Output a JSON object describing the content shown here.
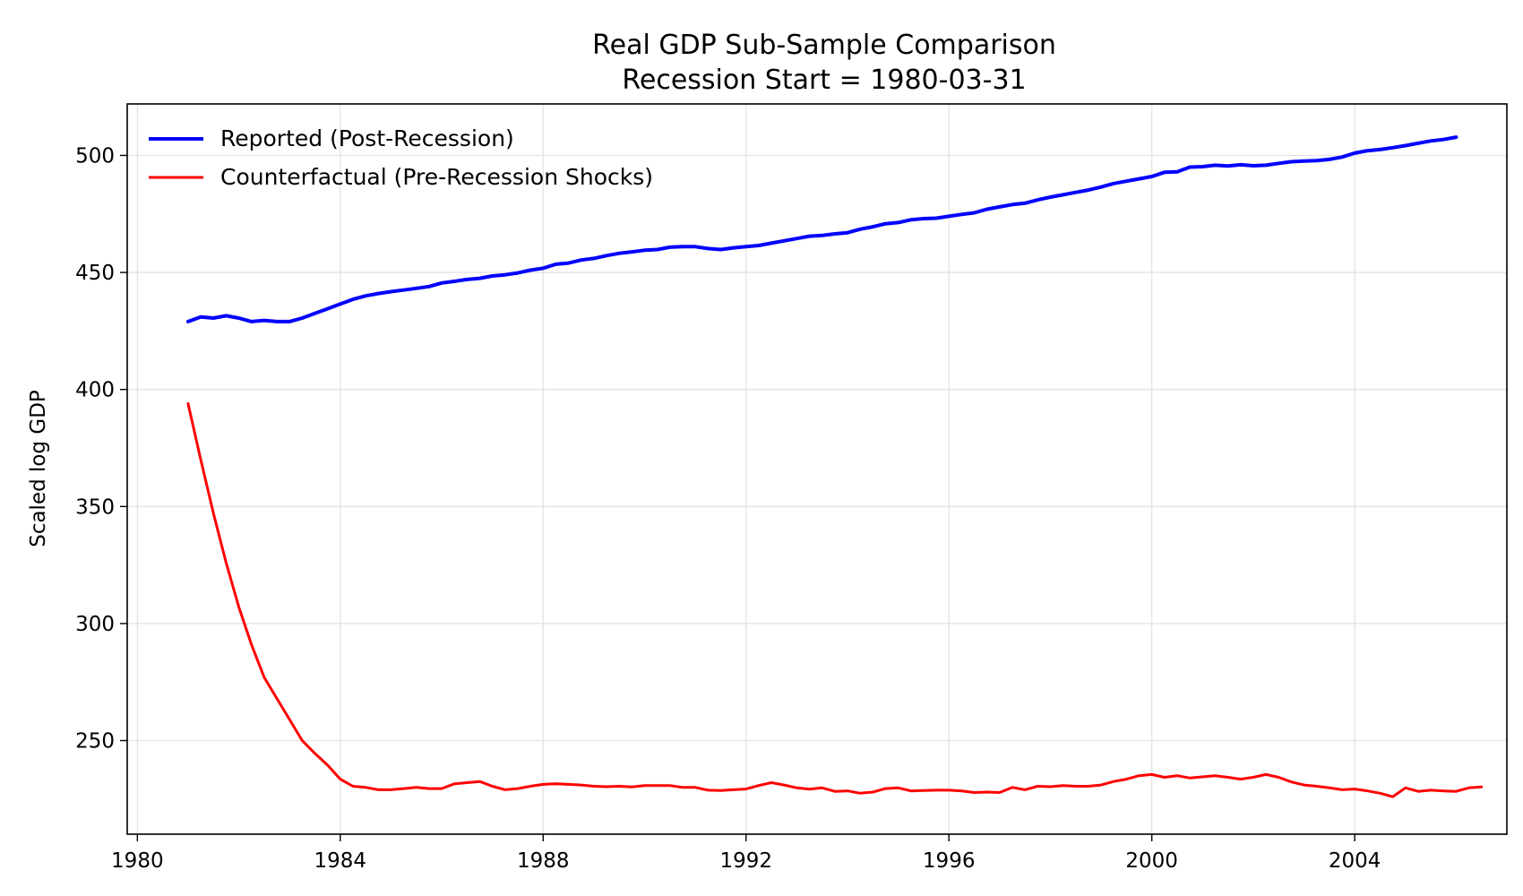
{
  "chart_data": {
    "type": "line",
    "title": "Real GDP Sub-Sample Comparison",
    "subtitle": "Recession Start = 1980-03-31",
    "xlabel": "",
    "ylabel": "Scaled log GDP",
    "xlim": [
      1979.8,
      2007.0
    ],
    "ylim": [
      210,
      522
    ],
    "xticks": [
      1980,
      1984,
      1988,
      1992,
      1996,
      2000,
      2004
    ],
    "yticks": [
      250,
      300,
      350,
      400,
      450,
      500
    ],
    "grid": true,
    "legend_position": "top-left",
    "series": [
      {
        "name": "Reported (Post-Recession)",
        "color": "#0000ff",
        "points": [
          [
            1981.0,
            429
          ],
          [
            1981.25,
            431
          ],
          [
            1981.5,
            430.5
          ],
          [
            1981.75,
            431.5
          ],
          [
            1982.0,
            430.5
          ],
          [
            1982.25,
            429
          ],
          [
            1982.5,
            429.5
          ],
          [
            1982.75,
            429
          ],
          [
            1983.0,
            429
          ],
          [
            1983.25,
            430.5
          ],
          [
            1983.5,
            432.5
          ],
          [
            1983.75,
            434.5
          ],
          [
            1984.0,
            436.5
          ],
          [
            1984.25,
            438.5
          ],
          [
            1984.5,
            440
          ],
          [
            1984.75,
            441
          ],
          [
            1985.0,
            441.8
          ],
          [
            1985.25,
            442.5
          ],
          [
            1985.5,
            443.2
          ],
          [
            1985.75,
            444
          ],
          [
            1986.0,
            445.5
          ],
          [
            1986.25,
            446.2
          ],
          [
            1986.5,
            447
          ],
          [
            1986.75,
            447.5
          ],
          [
            1987.0,
            448.5
          ],
          [
            1987.25,
            449
          ],
          [
            1987.5,
            449.8
          ],
          [
            1987.75,
            451
          ],
          [
            1988.0,
            451.8
          ],
          [
            1988.25,
            453.5
          ],
          [
            1988.5,
            454
          ],
          [
            1988.75,
            455.3
          ],
          [
            1989.0,
            456
          ],
          [
            1989.25,
            457.2
          ],
          [
            1989.5,
            458.2
          ],
          [
            1989.75,
            458.8
          ],
          [
            1990.0,
            459.5
          ],
          [
            1990.25,
            459.8
          ],
          [
            1990.5,
            460.8
          ],
          [
            1990.75,
            461
          ],
          [
            1991.0,
            461
          ],
          [
            1991.25,
            460.2
          ],
          [
            1991.5,
            459.8
          ],
          [
            1991.75,
            460.5
          ],
          [
            1992.0,
            461
          ],
          [
            1992.25,
            461.5
          ],
          [
            1992.5,
            462.5
          ],
          [
            1992.75,
            463.5
          ],
          [
            1993.0,
            464.5
          ],
          [
            1993.25,
            465.5
          ],
          [
            1993.5,
            465.8
          ],
          [
            1993.75,
            466.5
          ],
          [
            1994.0,
            467
          ],
          [
            1994.25,
            468.5
          ],
          [
            1994.5,
            469.5
          ],
          [
            1994.75,
            470.8
          ],
          [
            1995.0,
            471.3
          ],
          [
            1995.25,
            472.5
          ],
          [
            1995.5,
            473
          ],
          [
            1995.75,
            473.2
          ],
          [
            1996.0,
            474
          ],
          [
            1996.25,
            474.8
          ],
          [
            1996.5,
            475.5
          ],
          [
            1996.75,
            477
          ],
          [
            1997.0,
            478
          ],
          [
            1997.25,
            479
          ],
          [
            1997.5,
            479.6
          ],
          [
            1997.75,
            481
          ],
          [
            1998.0,
            482.2
          ],
          [
            1998.25,
            483.2
          ],
          [
            1998.5,
            484.2
          ],
          [
            1998.75,
            485.2
          ],
          [
            1999.0,
            486.5
          ],
          [
            1999.25,
            488
          ],
          [
            1999.5,
            489
          ],
          [
            1999.75,
            490
          ],
          [
            2000.0,
            491
          ],
          [
            2000.25,
            492.8
          ],
          [
            2000.5,
            493
          ],
          [
            2000.75,
            495
          ],
          [
            2001.0,
            495.2
          ],
          [
            2001.25,
            495.8
          ],
          [
            2001.5,
            495.5
          ],
          [
            2001.75,
            496
          ],
          [
            2002.0,
            495.6
          ],
          [
            2002.25,
            495.8
          ],
          [
            2002.5,
            496.6
          ],
          [
            2002.75,
            497.3
          ],
          [
            2003.0,
            497.6
          ],
          [
            2003.25,
            497.8
          ],
          [
            2003.5,
            498.3
          ],
          [
            2003.75,
            499.3
          ],
          [
            2004.0,
            501
          ],
          [
            2004.25,
            502
          ],
          [
            2004.5,
            502.5
          ],
          [
            2004.75,
            503.3
          ],
          [
            2005.0,
            504.2
          ],
          [
            2005.25,
            505.2
          ],
          [
            2005.5,
            506.2
          ],
          [
            2005.75,
            506.8
          ],
          [
            2006.0,
            507.8
          ]
        ]
      },
      {
        "name": "Counterfactual (Pre-Recession Shocks)",
        "color": "#ff0000",
        "points": [
          [
            1981.0,
            394
          ],
          [
            1981.25,
            370
          ],
          [
            1981.5,
            347
          ],
          [
            1981.75,
            326
          ],
          [
            1982.0,
            307
          ],
          [
            1982.25,
            291
          ],
          [
            1982.5,
            277
          ],
          [
            1982.75,
            268
          ],
          [
            1983.0,
            259
          ],
          [
            1983.25,
            250
          ],
          [
            1983.5,
            244.5
          ],
          [
            1983.75,
            239.5
          ],
          [
            1984.0,
            233.5
          ],
          [
            1984.25,
            230.5
          ],
          [
            1984.5,
            230
          ],
          [
            1984.75,
            229
          ],
          [
            1985.0,
            229
          ],
          [
            1985.25,
            229.5
          ],
          [
            1985.5,
            230
          ],
          [
            1985.75,
            229.5
          ],
          [
            1986.0,
            229.5
          ],
          [
            1986.25,
            231.5
          ],
          [
            1986.5,
            232
          ],
          [
            1986.75,
            232.5
          ],
          [
            1987.0,
            230.5
          ],
          [
            1987.25,
            229
          ],
          [
            1987.5,
            229.5
          ],
          [
            1987.75,
            230.5
          ],
          [
            1988.0,
            231.3
          ],
          [
            1988.25,
            231.5
          ],
          [
            1988.5,
            231.3
          ],
          [
            1988.75,
            231
          ],
          [
            1989.0,
            230.5
          ],
          [
            1989.25,
            230.3
          ],
          [
            1989.5,
            230.5
          ],
          [
            1989.75,
            230.2
          ],
          [
            1990.0,
            230.8
          ],
          [
            1990.25,
            230.8
          ],
          [
            1990.5,
            230.8
          ],
          [
            1990.75,
            230
          ],
          [
            1991.0,
            230
          ],
          [
            1991.25,
            228.8
          ],
          [
            1991.5,
            228.7
          ],
          [
            1991.75,
            229
          ],
          [
            1992.0,
            229.3
          ],
          [
            1992.25,
            230.8
          ],
          [
            1992.5,
            232
          ],
          [
            1992.75,
            231
          ],
          [
            1993.0,
            229.8
          ],
          [
            1993.25,
            229.2
          ],
          [
            1993.5,
            229.8
          ],
          [
            1993.75,
            228.3
          ],
          [
            1994.0,
            228.5
          ],
          [
            1994.25,
            227.5
          ],
          [
            1994.5,
            228
          ],
          [
            1994.75,
            229.5
          ],
          [
            1995.0,
            229.8
          ],
          [
            1995.25,
            228.5
          ],
          [
            1995.5,
            228.7
          ],
          [
            1995.75,
            228.8
          ],
          [
            1996.0,
            228.8
          ],
          [
            1996.25,
            228.5
          ],
          [
            1996.5,
            227.8
          ],
          [
            1996.75,
            228
          ],
          [
            1997.0,
            227.8
          ],
          [
            1997.25,
            230
          ],
          [
            1997.5,
            229
          ],
          [
            1997.75,
            230.5
          ],
          [
            1998.0,
            230.3
          ],
          [
            1998.25,
            230.8
          ],
          [
            1998.5,
            230.5
          ],
          [
            1998.75,
            230.5
          ],
          [
            1999.0,
            231
          ],
          [
            1999.25,
            232.5
          ],
          [
            1999.5,
            233.5
          ],
          [
            1999.75,
            235
          ],
          [
            2000.0,
            235.5
          ],
          [
            2000.25,
            234.3
          ],
          [
            2000.5,
            235
          ],
          [
            2000.75,
            234
          ],
          [
            2001.0,
            234.5
          ],
          [
            2001.25,
            235
          ],
          [
            2001.5,
            234.3
          ],
          [
            2001.75,
            233.5
          ],
          [
            2002.0,
            234.3
          ],
          [
            2002.25,
            235.5
          ],
          [
            2002.5,
            234.3
          ],
          [
            2002.75,
            232.3
          ],
          [
            2003.0,
            231
          ],
          [
            2003.25,
            230.5
          ],
          [
            2003.5,
            229.8
          ],
          [
            2003.75,
            229
          ],
          [
            2004.0,
            229.3
          ],
          [
            2004.25,
            228.5
          ],
          [
            2004.5,
            227.5
          ],
          [
            2004.75,
            226
          ],
          [
            2005.0,
            229.8
          ],
          [
            2005.25,
            228.3
          ],
          [
            2005.5,
            228.8
          ],
          [
            2005.75,
            228.5
          ],
          [
            2006.0,
            228.3
          ],
          [
            2006.25,
            229.8
          ],
          [
            2006.5,
            230.2
          ]
        ]
      }
    ]
  }
}
